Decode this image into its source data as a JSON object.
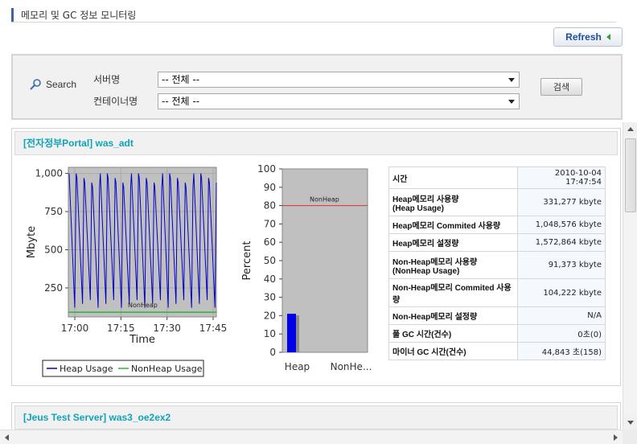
{
  "page": {
    "title": "메모리 및 GC 정보 모니터링",
    "refresh_label": "Refresh"
  },
  "search": {
    "label": "Search",
    "server_label": "서버명",
    "server_value": "-- 전체 --",
    "container_label": "컨테이너명",
    "container_value": "-- 전체 --",
    "search_button": "검색"
  },
  "panels": [
    {
      "title": "[전자정부Portal] was_adt",
      "info_rows": [
        {
          "key": "시간",
          "value": "2010-10-04 17:47:54"
        },
        {
          "key": "Heap메모리 사용량",
          "sub": "(Heap Usage)",
          "value": "331,277 kbyte"
        },
        {
          "key": "Heap메모리 Commited 사용량",
          "value": "1,048,576 kbyte"
        },
        {
          "key": "Heap메모리 설정량",
          "value": "1,572,864 kbyte"
        },
        {
          "key": "Non-Heap메모리 사용량",
          "sub": "(NonHeap Usage)",
          "value": "91,373 kbyte"
        },
        {
          "key": "Non-Heap메모리 Commited 사용량",
          "value": "104,222 kbyte"
        },
        {
          "key": "Non-Heap메모리 설정량",
          "value": "N/A"
        },
        {
          "key": "풀 GC 시간(건수)",
          "value": "0초(0)"
        },
        {
          "key": "마이너 GC 시간(건수)",
          "value": "44,843 초(158)"
        }
      ]
    },
    {
      "title": "[Jeus Test Server] was3_oe2ex2"
    }
  ],
  "chart_data": [
    {
      "type": "line",
      "ylabel": "Mbyte",
      "xlabel": "Time",
      "y_ticks": [
        "1,000",
        "750",
        "500",
        "250"
      ],
      "x_ticks": [
        "17:00",
        "17:15",
        "17:30",
        "17:45"
      ],
      "ylim": [
        60,
        1040
      ],
      "annotation": "NonHeap",
      "legend": [
        "Heap Usage",
        "NonHeap Usage"
      ],
      "legend_position": "bottom",
      "colors": {
        "heap": "#0000c8",
        "nonheap": "#2db52d",
        "plot_bg": "#c0c0c0"
      },
      "series": [
        {
          "name": "Heap Usage",
          "sawtooth": {
            "cycles": 19,
            "min": 120,
            "max": 1000
          }
        },
        {
          "name": "NonHeap Usage",
          "value": 91
        }
      ]
    },
    {
      "type": "bar",
      "ylabel": "Percent",
      "categories": [
        "Heap",
        "NonHe..."
      ],
      "y_ticks": [
        "100",
        "90",
        "80",
        "70",
        "60",
        "50",
        "40",
        "30",
        "20",
        "10",
        "0"
      ],
      "ylim": [
        0,
        100
      ],
      "threshold": 80,
      "annotation": "NonHeap",
      "values": [
        21,
        0
      ],
      "colors": {
        "bar": "#0000e8",
        "bar_shadow": "#8a8a8a",
        "threshold": "#e03030",
        "plot_bg": "#c0c0c0"
      }
    }
  ]
}
